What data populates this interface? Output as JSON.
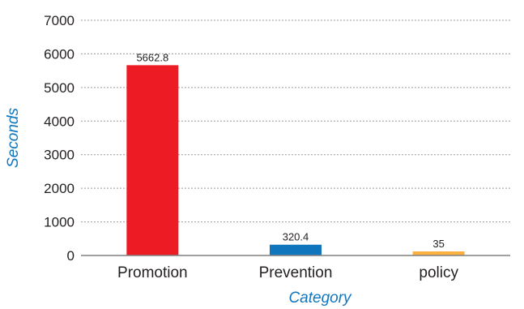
{
  "chart_data": {
    "type": "bar",
    "categories": [
      "Promotion",
      "Prevention",
      "policy"
    ],
    "values": [
      5662.8,
      320.4,
      35
    ],
    "data_labels": [
      "5662.8",
      "320.4",
      "35"
    ],
    "colors": [
      "#ed1c24",
      "#0f75bc",
      "#fbb040"
    ],
    "xlabel": "Category",
    "ylabel": "Seconds",
    "axis_title_color": "#0f75bc",
    "ylim": [
      0,
      7000
    ],
    "yticks": [
      0,
      1000,
      2000,
      3000,
      4000,
      5000,
      6000,
      7000
    ],
    "grid": true,
    "legend": "none"
  }
}
